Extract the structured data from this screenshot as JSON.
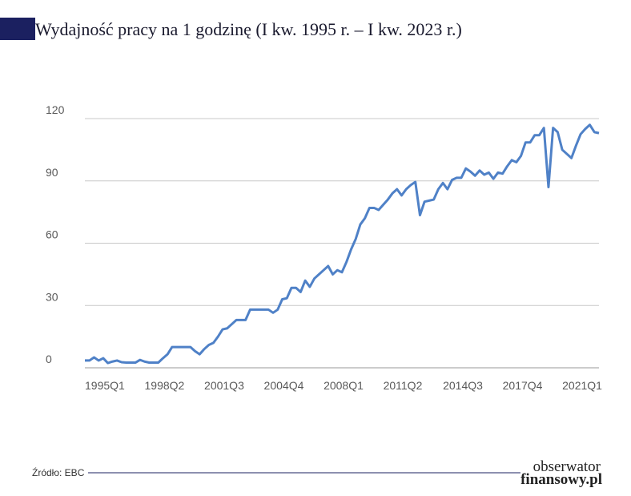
{
  "chart_data": {
    "type": "line",
    "title": "Wydajność pracy na 1 godzinę (I kw. 1995 r. – I kw. 2023 r.)",
    "categories": [
      "1995Q1",
      null,
      null,
      null,
      null,
      null,
      null,
      null,
      null,
      null,
      null,
      null,
      null,
      "1998Q2",
      null,
      null,
      null,
      null,
      null,
      null,
      null,
      null,
      null,
      null,
      null,
      null,
      "2001Q3",
      null,
      null,
      null,
      null,
      null,
      null,
      null,
      null,
      null,
      null,
      null,
      null,
      "2004Q4",
      null,
      null,
      null,
      null,
      null,
      null,
      null,
      null,
      null,
      null,
      null,
      null,
      "2008Q1",
      null,
      null,
      null,
      null,
      null,
      null,
      null,
      null,
      null,
      null,
      null,
      null,
      "2011Q2",
      null,
      null,
      null,
      null,
      null,
      null,
      null,
      null,
      null,
      null,
      null,
      null,
      "2014Q3",
      null,
      null,
      null,
      null,
      null,
      null,
      null,
      null,
      null,
      null,
      null,
      null,
      "2017Q4",
      null,
      null,
      null,
      null,
      null,
      null,
      null,
      null,
      null,
      null,
      null,
      null,
      "2021Q1",
      null,
      null,
      null,
      null,
      null,
      null,
      null,
      null
    ],
    "series": [
      {
        "color": "#4f81c7",
        "values": [
          3.5,
          3.5,
          5,
          3.5,
          4.6,
          2.3,
          3,
          3.5,
          2.7,
          2.5,
          2.5,
          2.5,
          3.8,
          3,
          2.5,
          2.5,
          2.5,
          4.6,
          6.5,
          10,
          10,
          10,
          10,
          10,
          8,
          6.5,
          9,
          11,
          12,
          15,
          18.5,
          19,
          21,
          23,
          23,
          23,
          28,
          28,
          28,
          28,
          28,
          26.5,
          28,
          33,
          33.5,
          38.5,
          38.5,
          36.5,
          42,
          39,
          43,
          45,
          47,
          49,
          45,
          47,
          46,
          51,
          57,
          62,
          69,
          72,
          77,
          77,
          76,
          78.5,
          81,
          84,
          86,
          83,
          86,
          88,
          89.5,
          73.5,
          80,
          80.5,
          81,
          86,
          89,
          86,
          90.5,
          91.5,
          91.5,
          96,
          94.5,
          92.5,
          95,
          93,
          94,
          91,
          94,
          93.5,
          97,
          100,
          99,
          102,
          108.5,
          108.5,
          112,
          112,
          115.5,
          87,
          115.5,
          113.5,
          105,
          103,
          101,
          107,
          112.5,
          115,
          117,
          113.5,
          113
        ]
      }
    ],
    "ylim": [
      0,
      120
    ],
    "yticks": [
      0,
      30,
      60,
      90,
      120
    ],
    "grid": true
  },
  "footer": {
    "source": "Źródło: EBC",
    "logo": [
      "obserwator",
      "finansowy.pl"
    ]
  }
}
